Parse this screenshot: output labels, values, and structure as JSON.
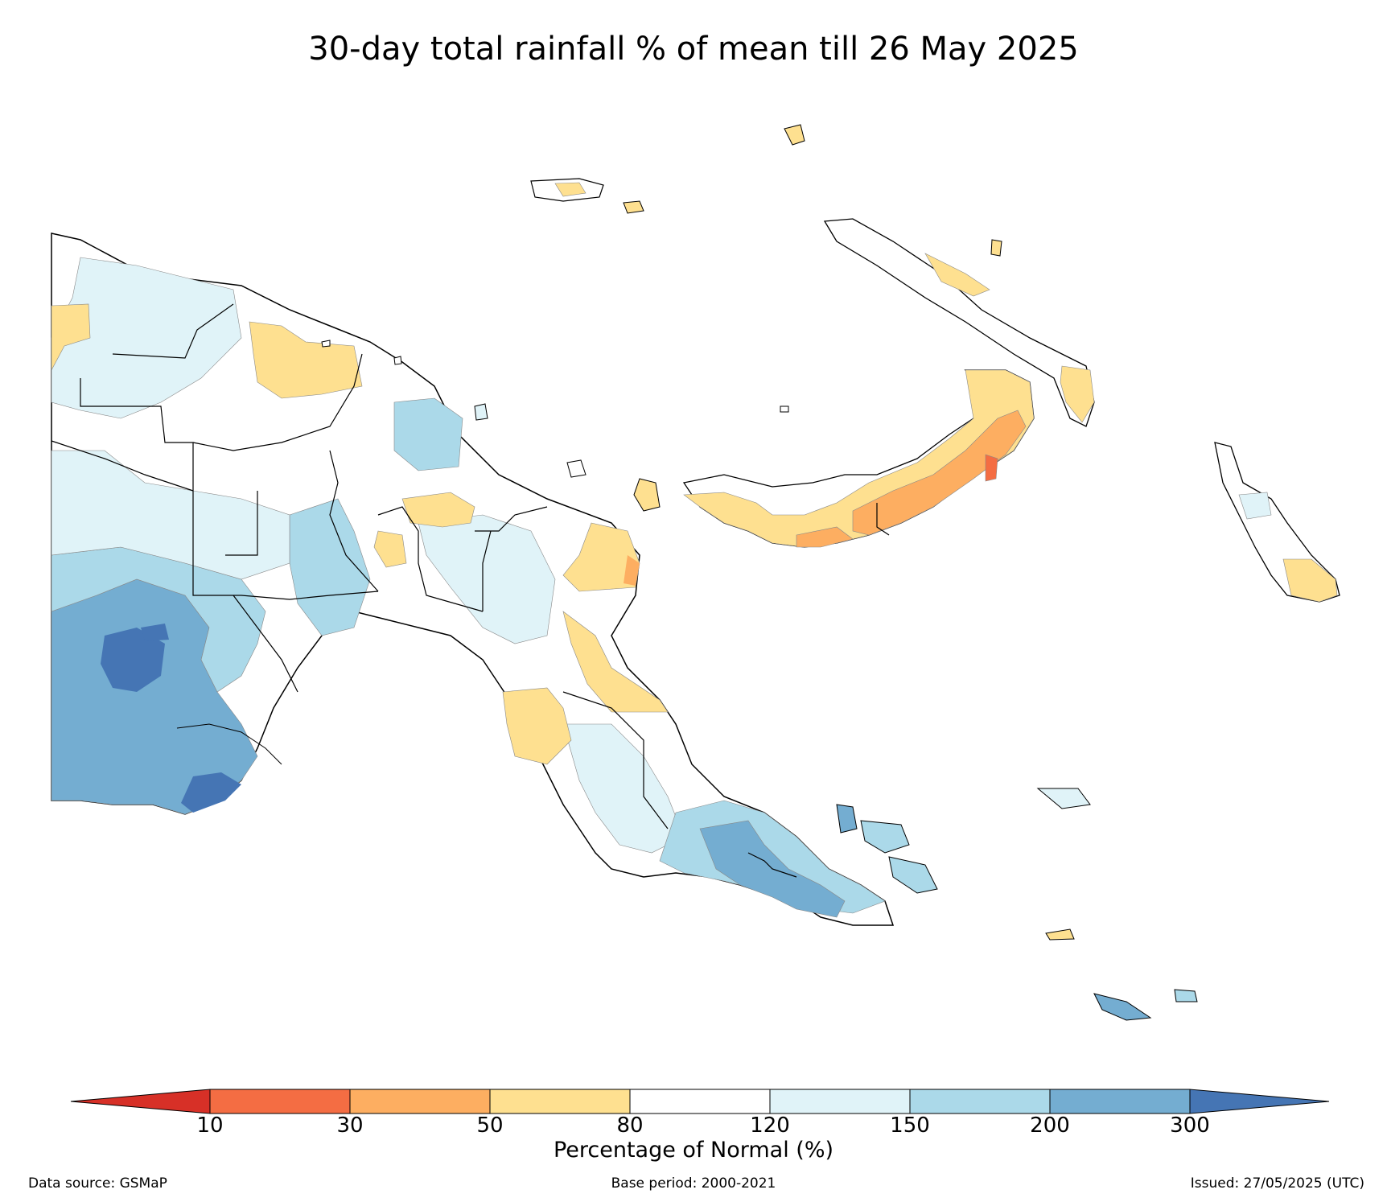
{
  "title": "30-day total rainfall % of mean till 26 May 2025",
  "colorbar": {
    "title": "Percentage of Normal (%)",
    "ticks": [
      "10",
      "30",
      "50",
      "80",
      "120",
      "150",
      "200",
      "300"
    ],
    "colors": {
      "under": "#d73027",
      "bins": [
        "#f46d43",
        "#fdae61",
        "#fee090",
        "#ffffff",
        "#e0f3f8",
        "#abd9e9",
        "#74add1"
      ],
      "over": "#4575b4"
    }
  },
  "footer": {
    "source": "Data source: GSMaP",
    "base_period": "Base period: 2000-2021",
    "issued": "Issued: 27/05/2025 (UTC)"
  },
  "legend_categories": [
    {
      "range": "10-30",
      "color": "#f46d43"
    },
    {
      "range": "30-50",
      "color": "#fdae61"
    },
    {
      "range": "50-80",
      "color": "#fee090"
    },
    {
      "range": "80-120",
      "color": "#ffffff"
    },
    {
      "range": "120-150",
      "color": "#e0f3f8"
    },
    {
      "range": "150-200",
      "color": "#abd9e9"
    },
    {
      "range": "200-300",
      "color": "#74add1"
    }
  ]
}
